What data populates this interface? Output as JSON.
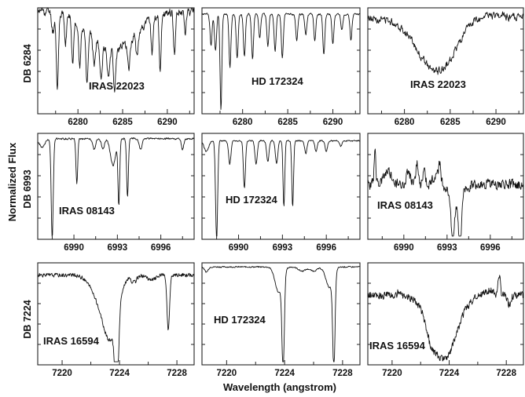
{
  "figure": {
    "ylabel": "Normalized Flux",
    "xlabel": "Wavelength (angstrom)",
    "row_labels": [
      "DB 6284",
      "DB 6993",
      "DB 7224"
    ]
  },
  "chart_data": [
    {
      "type": "line",
      "row": 0,
      "col": 0,
      "title": "IRAS 22023",
      "xlim": [
        6275.5,
        6293
      ],
      "xticks": [
        6280,
        6285,
        6290
      ],
      "continuum": 0.97,
      "noise": 0.035,
      "jag": [
        0.6,
        0.25
      ],
      "seed": 11,
      "features": [
        [
          6284,
          -0.38,
          2.4
        ],
        [
          6277.2,
          -0.18,
          0.14
        ],
        [
          6277.7,
          -0.72,
          0.12
        ],
        [
          6278.6,
          -0.28,
          0.12
        ],
        [
          6279.4,
          -0.42,
          0.12
        ],
        [
          6280.2,
          -0.44,
          0.12
        ],
        [
          6281.0,
          -0.52,
          0.12
        ],
        [
          6281.8,
          -0.28,
          0.12
        ],
        [
          6282.6,
          -0.34,
          0.12
        ],
        [
          6283.4,
          -0.25,
          0.12
        ],
        [
          6284.1,
          -0.35,
          0.12
        ],
        [
          6285.7,
          -0.25,
          0.12
        ],
        [
          6286.6,
          -0.2,
          0.12
        ],
        [
          6288.3,
          -0.32,
          0.11
        ],
        [
          6289.2,
          -0.5,
          0.11
        ],
        [
          6290.8,
          -0.38,
          0.11
        ],
        [
          6292.0,
          -0.22,
          0.11
        ]
      ]
    },
    {
      "type": "line",
      "row": 0,
      "col": 1,
      "title": "HD 172324",
      "xlim": [
        6275.5,
        6293
      ],
      "xticks": [
        6280,
        6285,
        6290
      ],
      "continuum": 0.94,
      "noise": 0.008,
      "jag": [
        0.4,
        0.05
      ],
      "seed": 12,
      "features": [
        [
          6276.5,
          -0.3,
          0.11
        ],
        [
          6277.0,
          -0.35,
          0.11
        ],
        [
          6277.6,
          -0.9,
          0.1
        ],
        [
          6278.6,
          -0.5,
          0.11
        ],
        [
          6279.4,
          -0.42,
          0.11
        ],
        [
          6280.2,
          -0.4,
          0.11
        ],
        [
          6281.1,
          -0.42,
          0.11
        ],
        [
          6281.9,
          -0.22,
          0.11
        ],
        [
          6282.8,
          -0.3,
          0.11
        ],
        [
          6283.6,
          -0.35,
          0.11
        ],
        [
          6284.4,
          -0.42,
          0.11
        ],
        [
          6286.0,
          -0.25,
          0.11
        ],
        [
          6287.0,
          -0.2,
          0.11
        ],
        [
          6288.0,
          -0.25,
          0.11
        ],
        [
          6289.0,
          -0.38,
          0.11
        ],
        [
          6290.0,
          -0.28,
          0.11
        ],
        [
          6291.0,
          -0.15,
          0.11
        ],
        [
          6292.0,
          -0.25,
          0.11
        ]
      ]
    },
    {
      "type": "line",
      "row": 0,
      "col": 2,
      "title": "IRAS 22023",
      "xlim": [
        6276,
        6293
      ],
      "xticks": [
        6280,
        6285,
        6290
      ],
      "continuum": 0.9,
      "noise": 0.03,
      "jag": [
        0.5,
        0.2
      ],
      "seed": 13,
      "features": [
        [
          6283.6,
          -0.52,
          2.1
        ],
        [
          6287.5,
          0.05,
          2.5
        ]
      ]
    },
    {
      "type": "line",
      "row": 1,
      "col": 0,
      "title": "IRAS 08143",
      "xlim": [
        6987.5,
        6998.3
      ],
      "xticks": [
        6990,
        6993,
        6996
      ],
      "continuum": 0.95,
      "noise": 0.008,
      "jag": [
        0.25,
        0.05
      ],
      "seed": 21,
      "features": [
        [
          6987.8,
          -0.08,
          0.2
        ],
        [
          6988.5,
          -0.94,
          0.07
        ],
        [
          6990.2,
          -0.42,
          0.06
        ],
        [
          6991.4,
          -0.1,
          0.1
        ],
        [
          6992.0,
          -0.1,
          0.1
        ],
        [
          6992.7,
          -0.25,
          0.18
        ],
        [
          6993.1,
          -0.62,
          0.06
        ],
        [
          6993.7,
          -0.55,
          0.06
        ],
        [
          6994.6,
          -0.1,
          0.1
        ],
        [
          6997.5,
          -0.1,
          0.08
        ]
      ]
    },
    {
      "type": "line",
      "row": 1,
      "col": 1,
      "title": "HD 172324",
      "xlim": [
        6987.5,
        6998.3
      ],
      "xticks": [
        6990,
        6993,
        6996
      ],
      "continuum": 0.93,
      "noise": 0.006,
      "jag": [
        0.25,
        0.04
      ],
      "seed": 22,
      "features": [
        [
          6987.8,
          -0.1,
          0.15
        ],
        [
          6988.5,
          -0.95,
          0.07
        ],
        [
          6989.4,
          -0.22,
          0.08
        ],
        [
          6990.4,
          -0.45,
          0.07
        ],
        [
          6991.2,
          -0.22,
          0.08
        ],
        [
          6992.0,
          -0.2,
          0.08
        ],
        [
          6992.6,
          -0.22,
          0.08
        ],
        [
          6993.1,
          -0.62,
          0.06
        ],
        [
          6993.7,
          -0.62,
          0.06
        ],
        [
          6994.6,
          -0.12,
          0.08
        ],
        [
          6995.3,
          -0.1,
          0.08
        ],
        [
          6996.0,
          -0.1,
          0.08
        ],
        [
          6997.0,
          -0.05,
          0.08
        ]
      ]
    },
    {
      "type": "line",
      "row": 1,
      "col": 2,
      "title": "IRAS 08143",
      "xlim": [
        6987.5,
        6998.3
      ],
      "xticks": [
        6990,
        6993,
        6996
      ],
      "continuum": 0.52,
      "noise": 0.045,
      "jag": [
        0.35,
        0.15
      ],
      "seed": 23,
      "features": [
        [
          6988.0,
          0.32,
          0.06
        ],
        [
          6988.9,
          0.12,
          0.25
        ],
        [
          6990.3,
          0.12,
          0.15
        ],
        [
          6990.9,
          0.2,
          0.08
        ],
        [
          6991.4,
          0.15,
          0.08
        ],
        [
          6992.3,
          0.12,
          0.2
        ],
        [
          6992.5,
          0.14,
          0.06
        ],
        [
          6993.4,
          -0.38,
          0.1
        ],
        [
          6993.9,
          -0.5,
          0.09
        ],
        [
          6993.6,
          -0.2,
          0.4
        ]
      ]
    },
    {
      "type": "line",
      "row": 2,
      "col": 0,
      "title": "IRAS 16594",
      "xlim": [
        7218.3,
        7229.2
      ],
      "xticks": [
        7220,
        7224,
        7228
      ],
      "continuum": 0.88,
      "noise": 0.018,
      "jag": [
        0.2,
        0.12
      ],
      "seed": 31,
      "features": [
        [
          7223.8,
          -0.9,
          0.12
        ],
        [
          7223.4,
          -0.55,
          0.5
        ],
        [
          7222.6,
          -0.2,
          0.6
        ],
        [
          7227.4,
          -0.55,
          0.09
        ],
        [
          7225.0,
          -0.07,
          0.2
        ],
        [
          7226.2,
          -0.05,
          0.3
        ]
      ]
    },
    {
      "type": "line",
      "row": 2,
      "col": 1,
      "title": "HD 172324",
      "xlim": [
        7218.3,
        7229.2
      ],
      "xticks": [
        7220,
        7224,
        7228
      ],
      "continuum": 0.96,
      "noise": 0.006,
      "jag": [
        0.2,
        0.03
      ],
      "seed": 32,
      "features": [
        [
          7223.9,
          -0.92,
          0.08
        ],
        [
          7223.6,
          -0.25,
          0.25
        ],
        [
          7227.4,
          -0.92,
          0.08
        ],
        [
          7227.1,
          -0.2,
          0.25
        ],
        [
          7218.6,
          -0.05,
          0.12
        ],
        [
          7225.2,
          -0.04,
          0.25
        ],
        [
          7226.0,
          -0.04,
          0.25
        ]
      ]
    },
    {
      "type": "line",
      "row": 2,
      "col": 2,
      "title": "IRAS 16594",
      "xlim": [
        7218.3,
        7229.2
      ],
      "xticks": [
        7220,
        7224,
        7228
      ],
      "continuum": 0.68,
      "noise": 0.035,
      "jag": [
        0.18,
        0.16
      ],
      "seed": 33,
      "features": [
        [
          7223.6,
          -0.62,
          0.9
        ],
        [
          7222.7,
          -0.12,
          0.3
        ],
        [
          7220.5,
          0.05,
          0.1
        ],
        [
          7227.5,
          0.2,
          0.08
        ],
        [
          7226.8,
          0.05,
          0.3
        ],
        [
          7228.2,
          -0.08,
          0.12
        ]
      ]
    }
  ]
}
